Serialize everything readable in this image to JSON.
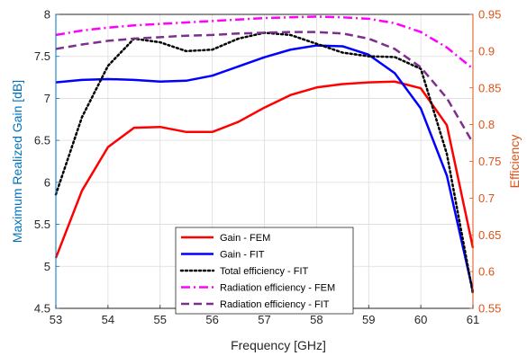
{
  "chart_data": {
    "type": "line",
    "xlabel": "Frequency [GHz]",
    "ylabel_left": "Maximum Realized Gain [dB]",
    "ylabel_right": "Efficiency",
    "xlim": [
      53,
      61
    ],
    "ylim_left": [
      4.5,
      8
    ],
    "ylim_right": [
      0.55,
      0.95
    ],
    "x_ticks": [
      "53",
      "54",
      "55",
      "56",
      "57",
      "58",
      "59",
      "60",
      "61"
    ],
    "y_left_ticks": [
      "4.5",
      "5",
      "5.5",
      "6",
      "6.5",
      "7",
      "7.5",
      "8"
    ],
    "y_right_ticks": [
      "0.55",
      "0.6",
      "0.65",
      "0.7",
      "0.75",
      "0.8",
      "0.85",
      "0.9",
      "0.95"
    ],
    "grid": true,
    "legend_position": "bottom-center",
    "colors": {
      "left_axis": "#0072bd",
      "right_axis": "#d95319",
      "grid": "#dcdcdc",
      "axes": "#262626"
    },
    "series": [
      {
        "name": "Gain - FEM",
        "axis": "left",
        "color": "#ff0000",
        "dash": "solid",
        "width": 2.5,
        "x": [
          53,
          53.5,
          54,
          54.5,
          55,
          55.5,
          56,
          56.5,
          57,
          57.5,
          58,
          58.5,
          59,
          59.5,
          60,
          60.5,
          61
        ],
        "y": [
          5.1,
          5.9,
          6.42,
          6.65,
          6.66,
          6.6,
          6.6,
          6.72,
          6.89,
          7.04,
          7.13,
          7.17,
          7.19,
          7.2,
          7.12,
          6.68,
          5.22
        ]
      },
      {
        "name": "Gain - FIT",
        "axis": "left",
        "color": "#0000ff",
        "dash": "solid",
        "width": 2.5,
        "x": [
          53,
          53.5,
          54,
          54.5,
          55,
          55.5,
          56,
          56.5,
          57,
          57.5,
          58,
          58.5,
          59,
          59.5,
          60,
          60.5,
          61
        ],
        "y": [
          7.19,
          7.22,
          7.23,
          7.22,
          7.2,
          7.21,
          7.27,
          7.38,
          7.49,
          7.58,
          7.63,
          7.62,
          7.52,
          7.3,
          6.88,
          6.08,
          4.7
        ]
      },
      {
        "name": "Total efficiency - FIT",
        "axis": "right",
        "color": "#000000",
        "dash": "dotted",
        "width": 2.5,
        "x": [
          53,
          53.5,
          54,
          54.5,
          55,
          55.5,
          56,
          56.5,
          57,
          57.5,
          58,
          58.5,
          59,
          59.5,
          60,
          60.5,
          61
        ],
        "y": [
          0.705,
          0.81,
          0.88,
          0.917,
          0.912,
          0.9,
          0.902,
          0.917,
          0.925,
          0.922,
          0.91,
          0.898,
          0.893,
          0.892,
          0.876,
          0.76,
          0.57
        ]
      },
      {
        "name": "Radiation efficiency - FEM",
        "axis": "right",
        "color": "#ff00ff",
        "dash": "dashdot",
        "width": 2.5,
        "x": [
          53,
          53.5,
          54,
          54.5,
          55,
          55.5,
          56,
          56.5,
          57,
          57.5,
          58,
          58.5,
          59,
          59.5,
          60,
          60.5,
          61
        ],
        "y": [
          0.922,
          0.928,
          0.932,
          0.935,
          0.937,
          0.939,
          0.941,
          0.943,
          0.945,
          0.946,
          0.947,
          0.946,
          0.944,
          0.938,
          0.926,
          0.905,
          0.876
        ]
      },
      {
        "name": "Radiation efficiency - FIT",
        "axis": "right",
        "color": "#7e2f8e",
        "dash": "dashed",
        "width": 2.5,
        "x": [
          53,
          53.5,
          54,
          54.5,
          55,
          55.5,
          56,
          56.5,
          57,
          57.5,
          58,
          58.5,
          59,
          59.5,
          60,
          60.5,
          61
        ],
        "y": [
          0.903,
          0.909,
          0.914,
          0.917,
          0.919,
          0.921,
          0.922,
          0.924,
          0.925,
          0.926,
          0.926,
          0.924,
          0.917,
          0.903,
          0.878,
          0.836,
          0.775
        ]
      }
    ]
  }
}
